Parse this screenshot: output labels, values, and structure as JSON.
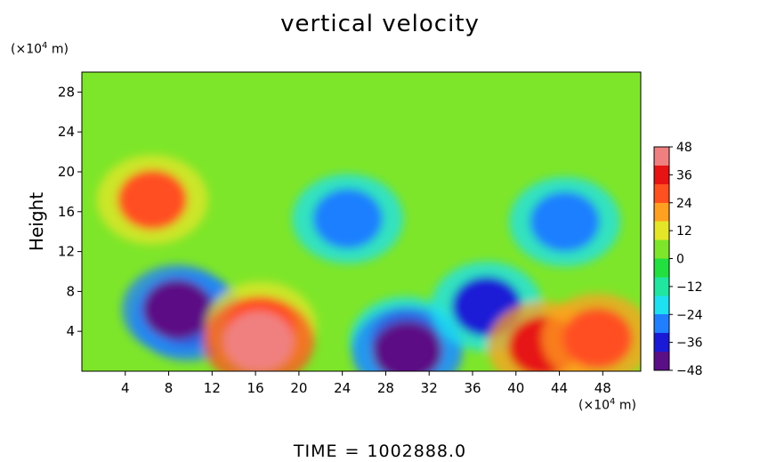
{
  "title": "vertical velocity",
  "y_unit_prefix": "(×10",
  "y_unit_exp": "4",
  "y_unit_suffix": " m)",
  "x_unit_prefix": "(×10",
  "x_unit_exp": "4",
  "x_unit_suffix": " m)",
  "ylabel": "Height",
  "time_label": "TIME",
  "time_eq": "=",
  "time_value": "1002888.0",
  "chart_data": {
    "type": "heatmap",
    "title": "vertical velocity",
    "xlabel": "",
    "ylabel": "Height",
    "x_unit": "(×10^4 m)",
    "y_unit": "(×10^4 m)",
    "xlim": [
      0,
      51.5
    ],
    "ylim": [
      0,
      30
    ],
    "x_ticks": [
      4,
      8,
      12,
      16,
      20,
      24,
      28,
      32,
      36,
      40,
      44,
      48
    ],
    "y_ticks": [
      4,
      8,
      12,
      16,
      20,
      24,
      28
    ],
    "colorbar": {
      "ticks": [
        48,
        36,
        24,
        12,
        0,
        -12,
        -24,
        -36,
        -48
      ],
      "range": [
        -48,
        48
      ],
      "colors": [
        "#5b0f86",
        "#1a1ad6",
        "#1f7fff",
        "#1ee0f0",
        "#20e6a0",
        "#22e040",
        "#7ee62a",
        "#e6e628",
        "#ffa020",
        "#ff5020",
        "#e61414",
        "#f08080"
      ]
    },
    "features": [
      {
        "x": 9.8,
        "y": 5.5,
        "value": -44
      },
      {
        "x": 8.8,
        "y": 6.2,
        "value": -48
      },
      {
        "x": 16.5,
        "y": 4.5,
        "value": 28
      },
      {
        "x": 16.3,
        "y": 3.0,
        "value": 48
      },
      {
        "x": 29.8,
        "y": 3.0,
        "value": -42
      },
      {
        "x": 30.0,
        "y": 2.0,
        "value": -48
      },
      {
        "x": 37.3,
        "y": 6.5,
        "value": -38
      },
      {
        "x": 42.5,
        "y": 2.5,
        "value": 36
      },
      {
        "x": 47.5,
        "y": 3.3,
        "value": 30
      },
      {
        "x": 6.5,
        "y": 17.2,
        "value": 24
      },
      {
        "x": 24.5,
        "y": 15.3,
        "value": -30
      },
      {
        "x": 44.5,
        "y": 15.0,
        "value": -30
      }
    ]
  }
}
